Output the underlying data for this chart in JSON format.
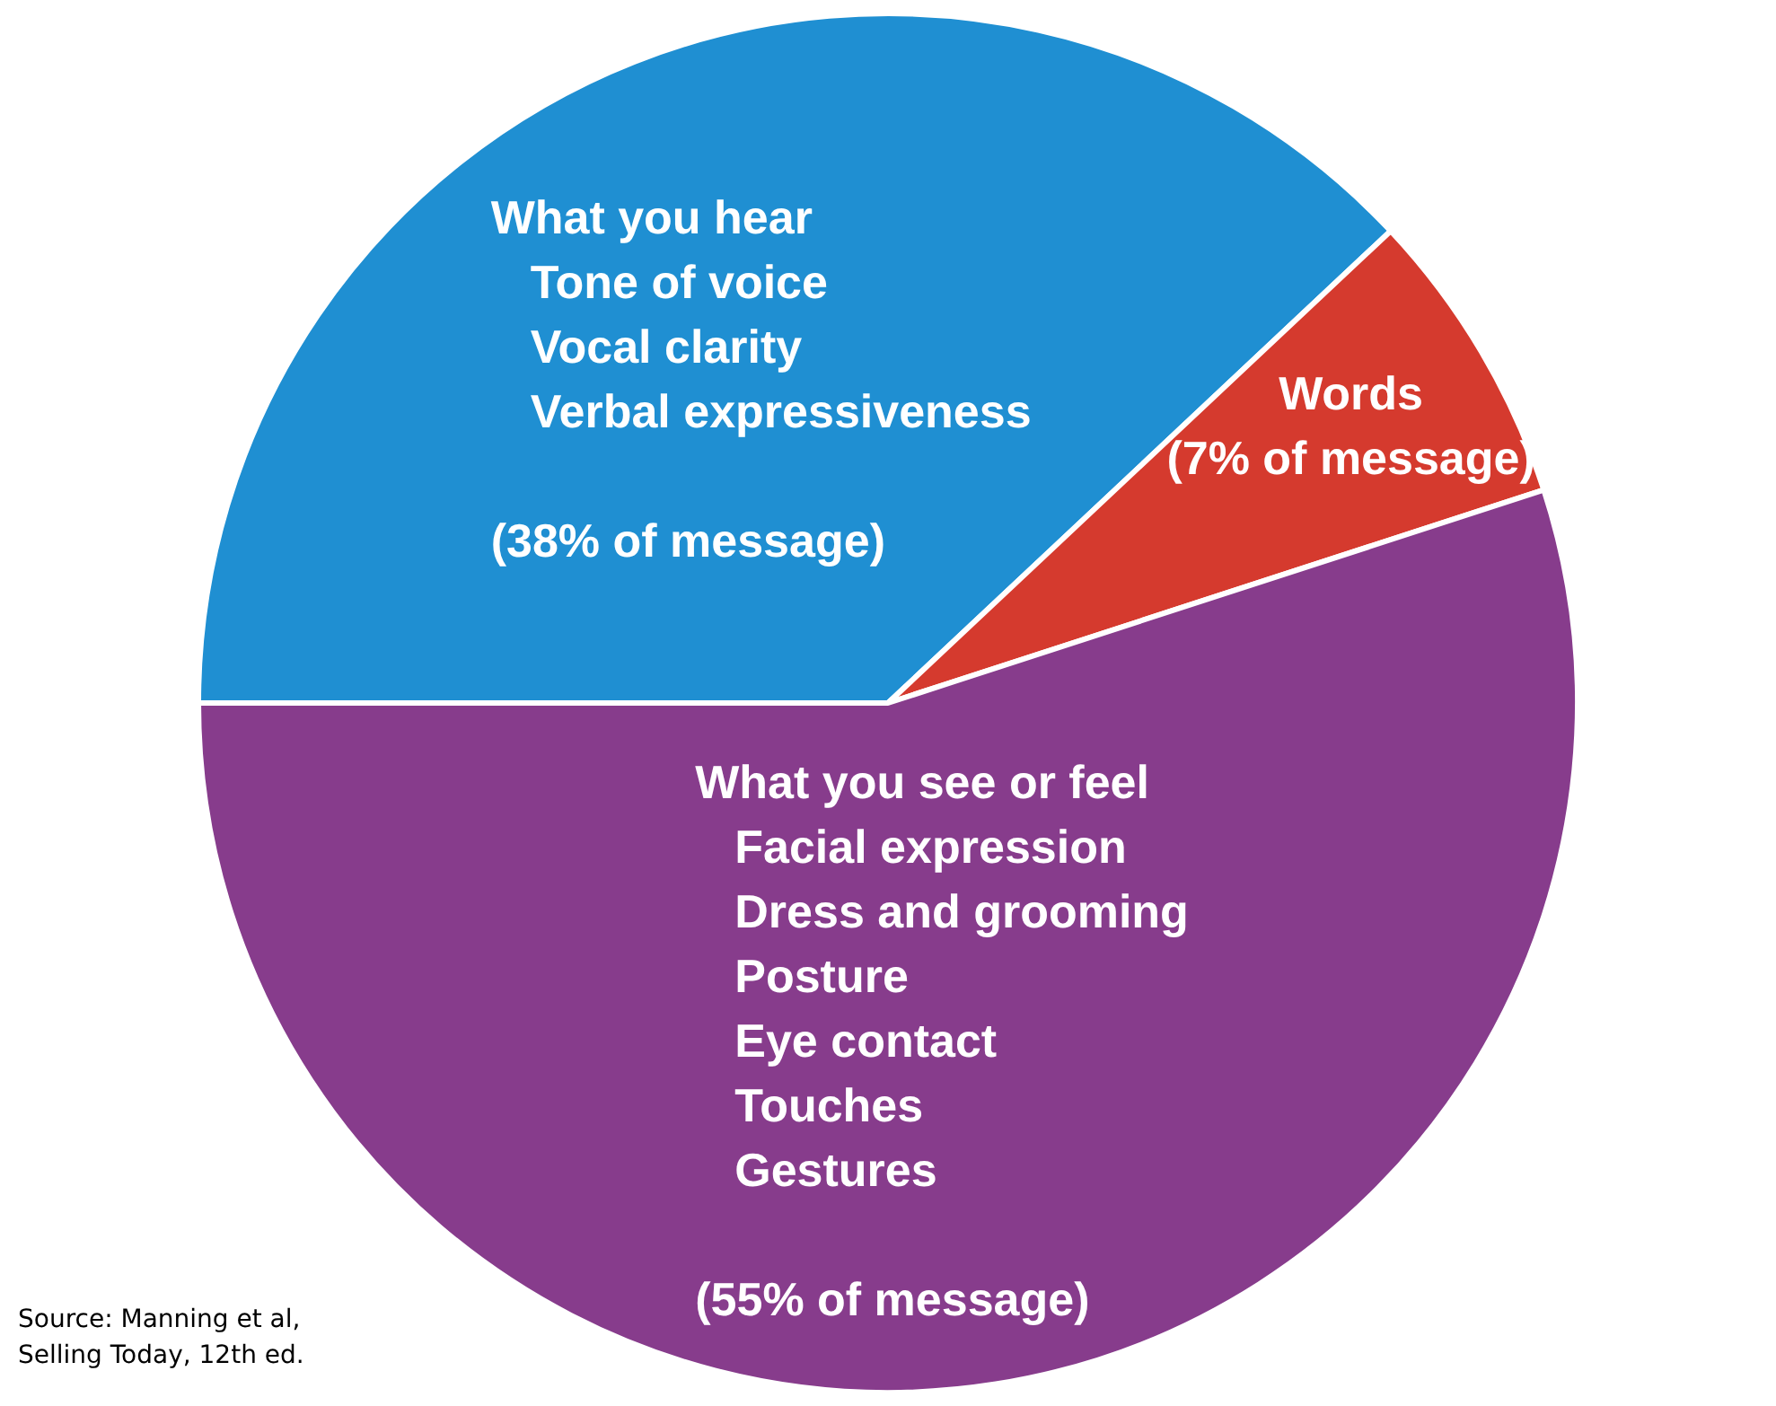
{
  "chart_data": {
    "type": "pie",
    "categories": [
      "What you hear\nTone of voice\nVocal clarity\nVerbal expressiveness",
      "Words",
      "What you see or feel\nFacial expression\nDress and grooming\nPosture\nEye contact\nTouches\nGestures"
    ],
    "values": [
      38,
      7,
      55
    ],
    "colors": [
      "#1f8fd2",
      "#d53a2e",
      "#873c8c"
    ],
    "value_labels": [
      "(38% of message)",
      "(7% of message)",
      "(55% of message)"
    ],
    "annotations": [
      "Source: Manning et al,\nSelling Today, 12th ed."
    ],
    "legend": false
  }
}
